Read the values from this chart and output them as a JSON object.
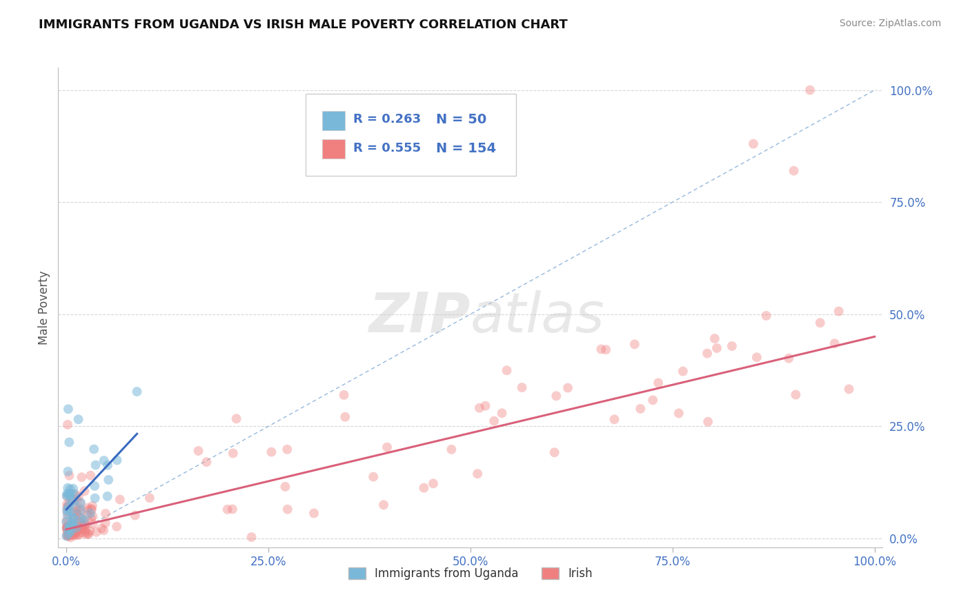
{
  "title": "IMMIGRANTS FROM UGANDA VS IRISH MALE POVERTY CORRELATION CHART",
  "source": "Source: ZipAtlas.com",
  "ylabel": "Male Poverty",
  "legend_labels": [
    "Immigrants from Uganda",
    "Irish"
  ],
  "color_uganda": "#7ab8d9",
  "color_irish": "#f08080",
  "color_line_uganda": "#3a6abf",
  "color_line_irish": "#d9607a",
  "color_diag": "#8ab0d8",
  "background_color": "#ffffff",
  "R_uganda": "0.263",
  "N_uganda": "50",
  "R_irish": "0.555",
  "N_irish": "154",
  "watermark_text": "ZIPatlas",
  "title_fontsize": 13,
  "tick_color": "#4472c4",
  "ylabel_color": "#555555",
  "source_color": "#888888"
}
